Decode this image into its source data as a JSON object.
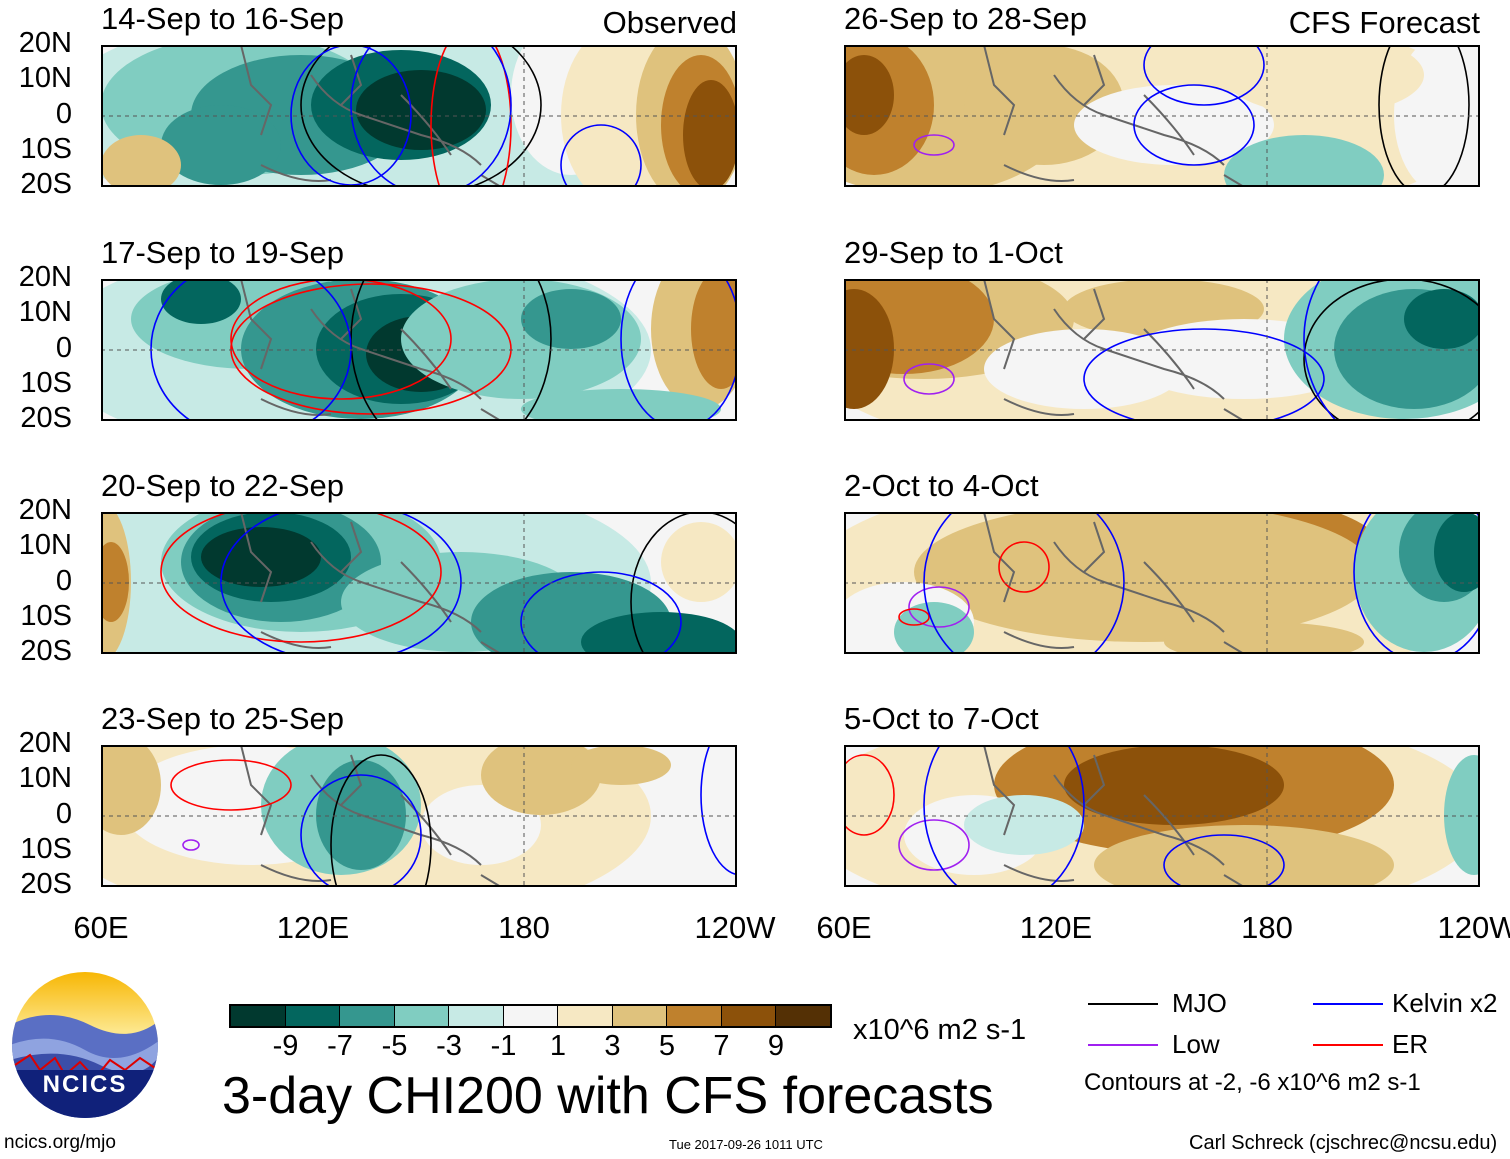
{
  "panels": [
    {
      "title": "14-Sep to 16-Sep",
      "corner": "Observed"
    },
    {
      "title": "17-Sep to 19-Sep",
      "corner": ""
    },
    {
      "title": "20-Sep to 22-Sep",
      "corner": ""
    },
    {
      "title": "23-Sep to 25-Sep",
      "corner": ""
    },
    {
      "title": "26-Sep to 28-Sep",
      "corner": "CFS Forecast"
    },
    {
      "title": "29-Sep to 1-Oct",
      "corner": ""
    },
    {
      "title": "2-Oct to 4-Oct",
      "corner": ""
    },
    {
      "title": "5-Oct to 7-Oct",
      "corner": ""
    }
  ],
  "lat_labels": [
    "20N",
    "10N",
    "0",
    "10S",
    "20S"
  ],
  "lon_labels": [
    "60E",
    "120E",
    "180",
    "120W"
  ],
  "colorbar": {
    "colors": [
      "#01392f",
      "#03665e",
      "#35978f",
      "#80cdc1",
      "#c7eae5",
      "#f5f5f5",
      "#f6e8c3",
      "#dfc27d",
      "#bf812d",
      "#8c510a",
      "#543005"
    ],
    "ticks": [
      "-9",
      "-7",
      "-5",
      "-3",
      "-1",
      "1",
      "3",
      "5",
      "7",
      "9"
    ],
    "units": "x10^6 m2 s-1"
  },
  "title": "3-day CHI200 with CFS forecasts",
  "legend": {
    "items": [
      {
        "label": "MJO",
        "color": "#000000"
      },
      {
        "label": "Kelvin x2",
        "color": "#0000ff"
      },
      {
        "label": "Low",
        "color": "#a020f0"
      },
      {
        "label": "ER",
        "color": "#ff0000"
      }
    ],
    "contours_note": "Contours at -2, -6 x10^6 m2 s-1"
  },
  "logo_text": "NCICS",
  "url": "ncics.org/mjo",
  "timestamp": "Tue 2017-09-26 1011 UTC",
  "author": "Carl Schreck (cjschrec@ncsu.edu)",
  "chart_data": {
    "type": "heatmap",
    "variable": "3-day CHI200 anomaly",
    "units": "x10^6 m2 s-1",
    "levels": [
      -9,
      -7,
      -5,
      -3,
      -1,
      1,
      3,
      5,
      7,
      9
    ],
    "xrange": [
      "60E",
      "120W"
    ],
    "yrange": [
      "20S",
      "20N"
    ],
    "contour_levels": [
      -2,
      -6
    ]
  }
}
